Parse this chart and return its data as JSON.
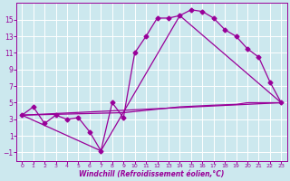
{
  "title": "",
  "xlabel": "Windchill (Refroidissement éolien,°C)",
  "ylabel": "",
  "bg_color": "#cce8ee",
  "grid_color": "#ffffff",
  "line_color": "#990099",
  "xlim": [
    -0.5,
    23.5
  ],
  "ylim": [
    -2,
    17
  ],
  "xticks": [
    0,
    1,
    2,
    3,
    4,
    5,
    6,
    7,
    8,
    9,
    10,
    11,
    12,
    13,
    14,
    15,
    16,
    17,
    18,
    19,
    20,
    21,
    22,
    23
  ],
  "yticks": [
    -1,
    1,
    3,
    5,
    7,
    9,
    11,
    13,
    15
  ],
  "line1_x": [
    0,
    1,
    2,
    3,
    4,
    5,
    6,
    7,
    8,
    9,
    10,
    11,
    12,
    13,
    14,
    15,
    16,
    17,
    18,
    19,
    20,
    21,
    22,
    23
  ],
  "line1_y": [
    3.5,
    4.5,
    2.5,
    3.5,
    3.0,
    3.2,
    1.5,
    -0.8,
    5.0,
    3.2,
    11.0,
    13.0,
    15.2,
    15.2,
    15.5,
    16.2,
    16.0,
    15.2,
    13.8,
    13.0,
    11.5,
    10.5,
    7.5,
    5.0
  ],
  "line2_x": [
    0,
    7,
    14,
    23
  ],
  "line2_y": [
    3.5,
    -0.8,
    15.5,
    5.0
  ],
  "line3_x": [
    0,
    23
  ],
  "line3_y": [
    3.5,
    5.0
  ],
  "line4_x": [
    0,
    9,
    14,
    17,
    19,
    20,
    23
  ],
  "line4_y": [
    3.5,
    3.8,
    4.5,
    4.7,
    4.8,
    5.0,
    5.0
  ],
  "markersize": 2.5,
  "linewidth": 0.9,
  "tick_fontsize_x": 4.5,
  "tick_fontsize_y": 5.5,
  "xlabel_fontsize": 5.5
}
